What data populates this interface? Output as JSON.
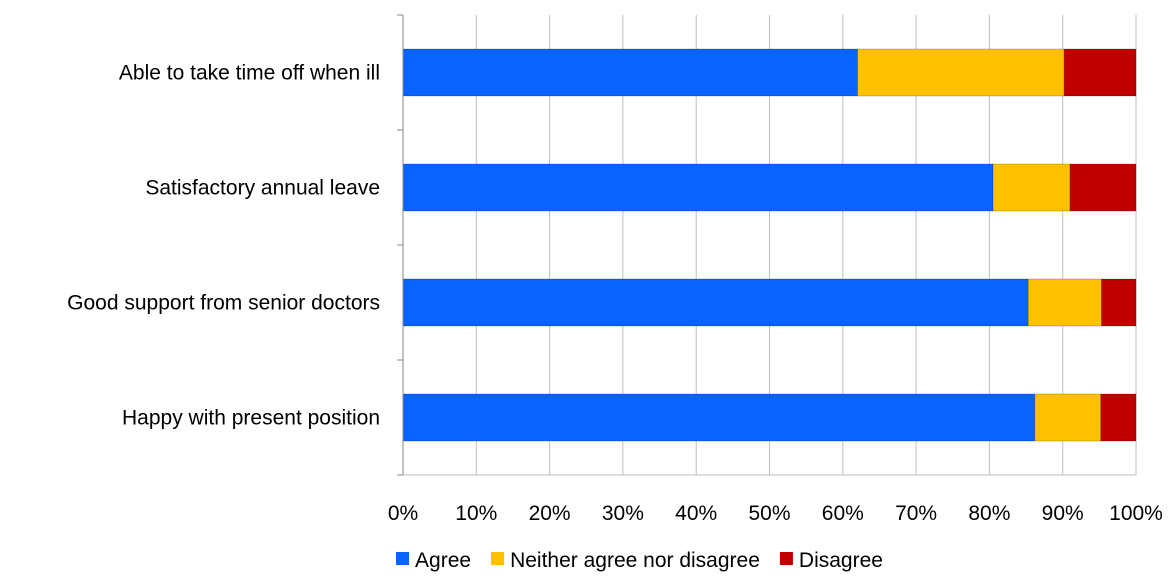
{
  "chart_data": {
    "type": "bar",
    "orientation": "horizontal",
    "stacked": "percent",
    "categories": [
      "Able to take time off when ill",
      "Satisfactory annual leave",
      "Good support from senior doctors",
      "Happy with present position"
    ],
    "series": [
      {
        "name": "Agree",
        "color": "#0B63FF",
        "values": [
          62,
          80.5,
          85.3,
          86.2
        ]
      },
      {
        "name": "Neither agree nor disagree",
        "color": "#FFC000",
        "values": [
          28.2,
          10.5,
          10,
          9
        ]
      },
      {
        "name": "Disagree",
        "color": "#C00000",
        "values": [
          9.8,
          9,
          4.7,
          4.8
        ]
      }
    ],
    "xlim": [
      0,
      100
    ],
    "xticks": [
      "0%",
      "10%",
      "20%",
      "30%",
      "40%",
      "50%",
      "60%",
      "70%",
      "80%",
      "90%",
      "100%"
    ],
    "grid": "vertical",
    "legend_position": "bottom"
  }
}
